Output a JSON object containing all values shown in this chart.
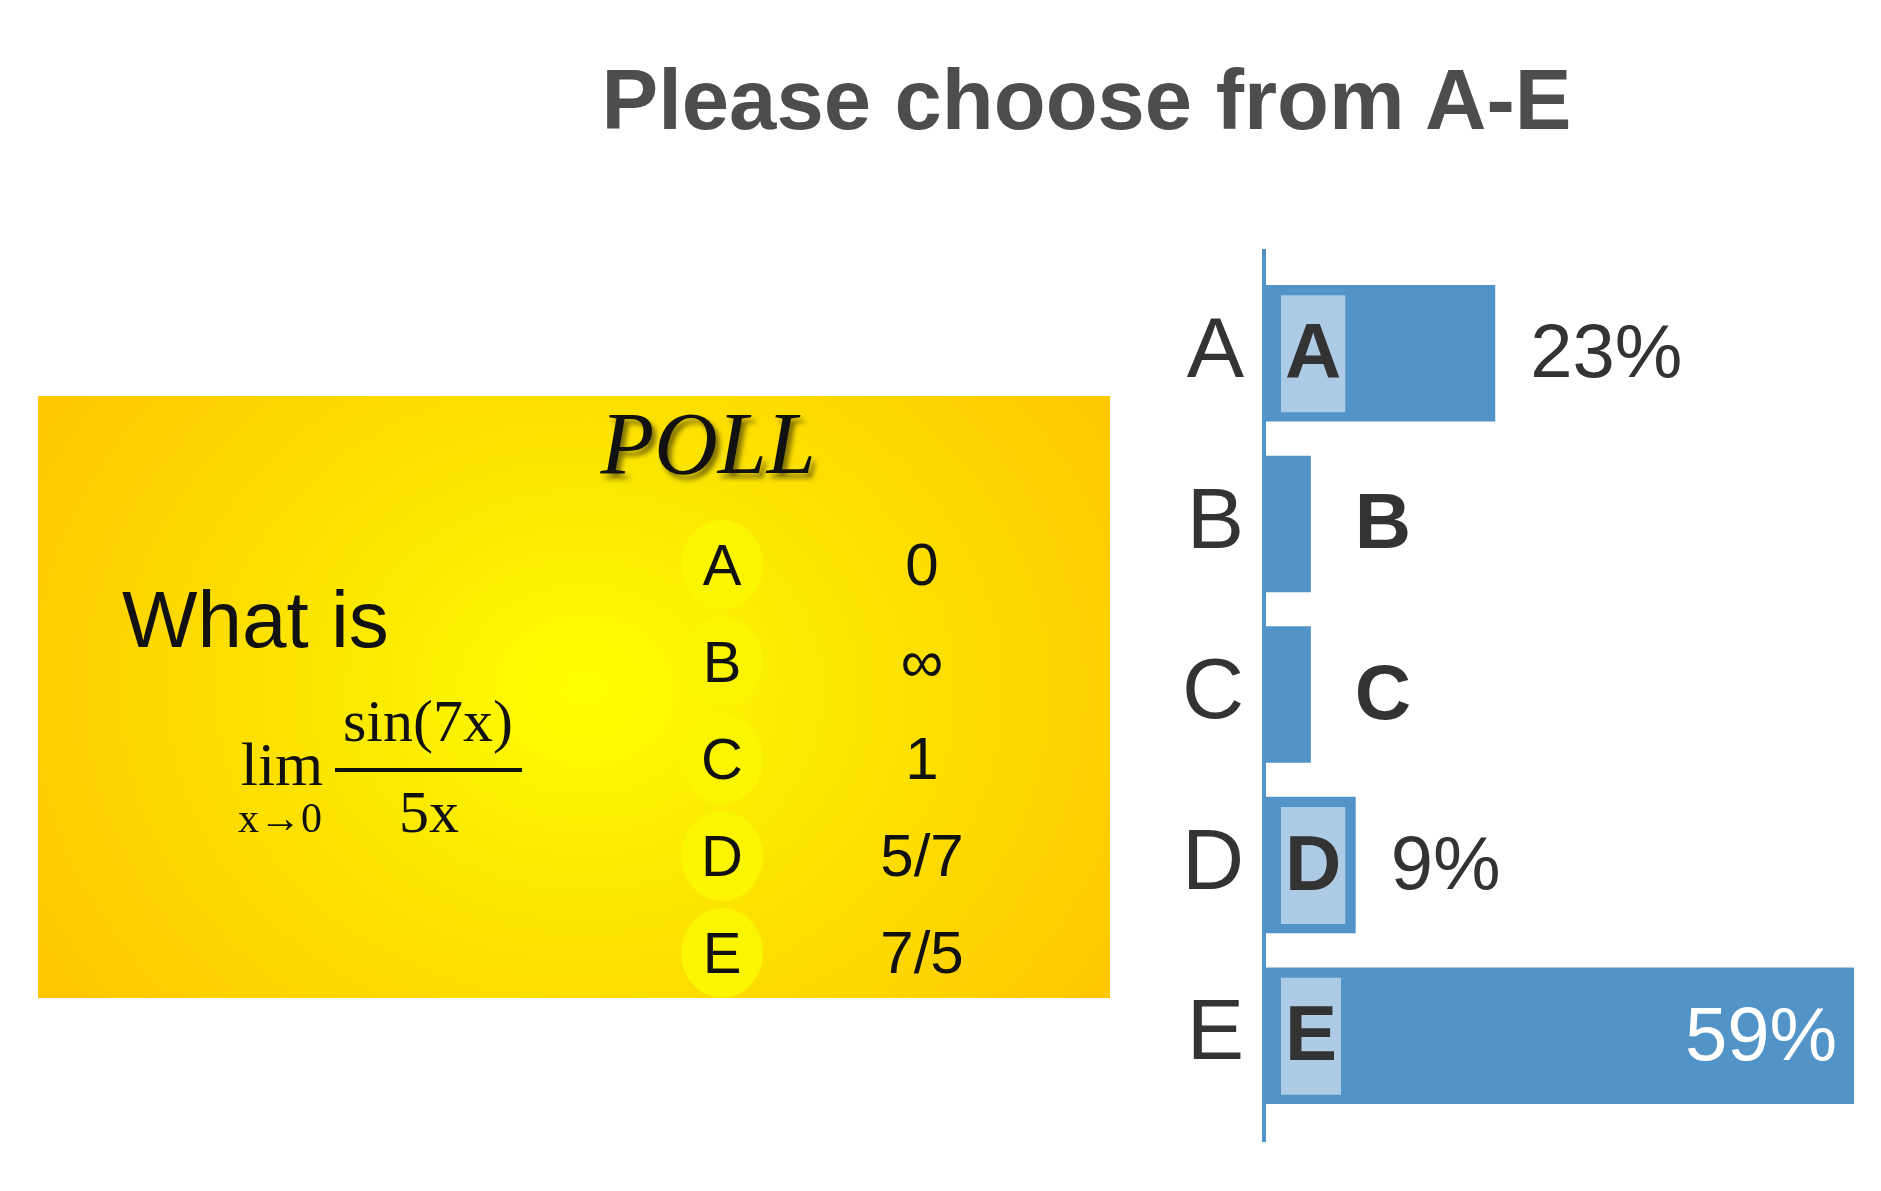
{
  "chart_data": [
    {
      "type": "other",
      "title": "POLL",
      "categories": [
        "A",
        "B",
        "C",
        "D",
        "E"
      ],
      "annotations": [
        "What is",
        "lim",
        "x→0",
        "sin(7x)",
        "5x",
        "0",
        "∞",
        "1",
        "5/7",
        "7/5"
      ]
    },
    {
      "type": "bar",
      "orientation": "horizontal",
      "title": "Please choose from A-E",
      "categories": [
        "A",
        "B",
        "C",
        "D",
        "E"
      ],
      "values": [
        23,
        4.5,
        4.5,
        9,
        59
      ],
      "value_labels": [
        "23%",
        null,
        null,
        "9%",
        "59%"
      ],
      "color": "#5294c8",
      "tick_labels": "y"
    }
  ]
}
